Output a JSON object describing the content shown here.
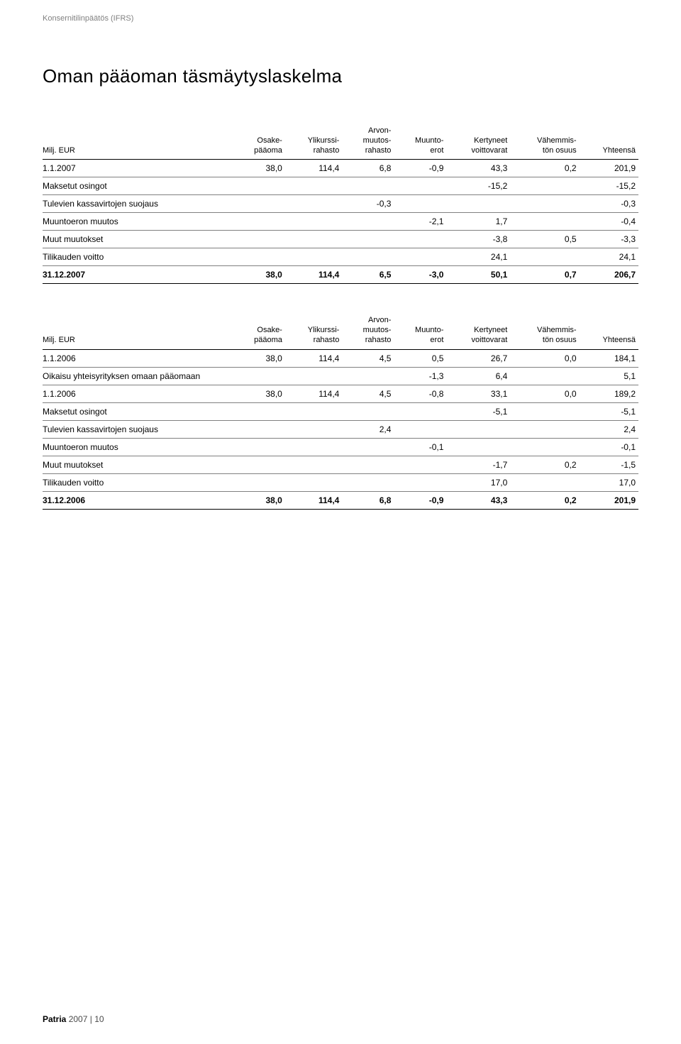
{
  "breadcrumb": "Konsernitilinpäätös (IFRS)",
  "title": "Oman pääoman täsmäytyslaskelma",
  "footer": {
    "brand": "Patria",
    "year": "2007",
    "sep": " | ",
    "page": "10"
  },
  "colors": {
    "text": "#000000",
    "muted": "#808080",
    "background": "#ffffff",
    "rule_heavy": "#000000",
    "rule_light": "#808080"
  },
  "typography": {
    "base_font": "Arial, Helvetica, sans-serif",
    "breadcrumb_size_pt": 8,
    "title_size_pt": 20,
    "table_size_pt": 9
  },
  "tables": [
    {
      "type": "table",
      "header_row_label": "Milj. EUR",
      "columns": [
        "Osake-\npääoma",
        "Ylikurssi-\nrahasto",
        "Arvon-\nmuutos-\nrahasto",
        "Muunto-\nerot",
        "Kertyneet\nvoittovarat",
        "Vähemmis-\ntön osuus",
        "Yhteensä"
      ],
      "rows": [
        {
          "label": "1.1.2007",
          "vals": [
            "38,0",
            "114,4",
            "6,8",
            "-0,9",
            "43,3",
            "0,2",
            "201,9"
          ]
        },
        {
          "label": "Maksetut osingot",
          "vals": [
            "",
            "",
            "",
            "",
            "-15,2",
            "",
            "-15,2"
          ]
        },
        {
          "label": "Tulevien kassavirtojen suojaus",
          "vals": [
            "",
            "",
            "-0,3",
            "",
            "",
            "",
            "-0,3"
          ]
        },
        {
          "label": "Muuntoeron muutos",
          "vals": [
            "",
            "",
            "",
            "-2,1",
            "1,7",
            "",
            "-0,4"
          ]
        },
        {
          "label": "Muut muutokset",
          "vals": [
            "",
            "",
            "",
            "",
            "-3,8",
            "0,5",
            "-3,3"
          ]
        },
        {
          "label": "Tilikauden voitto",
          "vals": [
            "",
            "",
            "",
            "",
            "24,1",
            "",
            "24,1"
          ]
        }
      ],
      "total": {
        "label": "31.12.2007",
        "vals": [
          "38,0",
          "114,4",
          "6,5",
          "-3,0",
          "50,1",
          "0,7",
          "206,7"
        ]
      }
    },
    {
      "type": "table",
      "header_row_label": "Milj. EUR",
      "columns": [
        "Osake-\npääoma",
        "Ylikurssi-\nrahasto",
        "Arvon-\nmuutos-\nrahasto",
        "Muunto-\nerot",
        "Kertyneet\nvoittovarat",
        "Vähemmis-\ntön osuus",
        "Yhteensä"
      ],
      "rows": [
        {
          "label": "1.1.2006",
          "vals": [
            "38,0",
            "114,4",
            "4,5",
            "0,5",
            "26,7",
            "0,0",
            "184,1"
          ]
        },
        {
          "label": "Oikaisu yhteisyrityksen omaan pääomaan",
          "vals": [
            "",
            "",
            "",
            "-1,3",
            "6,4",
            "",
            "5,1"
          ]
        },
        {
          "label": "1.1.2006",
          "vals": [
            "38,0",
            "114,4",
            "4,5",
            "-0,8",
            "33,1",
            "0,0",
            "189,2"
          ]
        },
        {
          "label": "Maksetut osingot",
          "vals": [
            "",
            "",
            "",
            "",
            "-5,1",
            "",
            "-5,1"
          ]
        },
        {
          "label": "Tulevien kassavirtojen suojaus",
          "vals": [
            "",
            "",
            "2,4",
            "",
            "",
            "",
            "2,4"
          ]
        },
        {
          "label": "Muuntoeron muutos",
          "vals": [
            "",
            "",
            "",
            "-0,1",
            "",
            "",
            "-0,1"
          ]
        },
        {
          "label": "Muut muutokset",
          "vals": [
            "",
            "",
            "",
            "",
            "-1,7",
            "0,2",
            "-1,5"
          ]
        },
        {
          "label": "Tilikauden voitto",
          "vals": [
            "",
            "",
            "",
            "",
            "17,0",
            "",
            "17,0"
          ]
        }
      ],
      "total": {
        "label": "31.12.2006",
        "vals": [
          "38,0",
          "114,4",
          "6,8",
          "-0,9",
          "43,3",
          "0,2",
          "201,9"
        ]
      }
    }
  ]
}
